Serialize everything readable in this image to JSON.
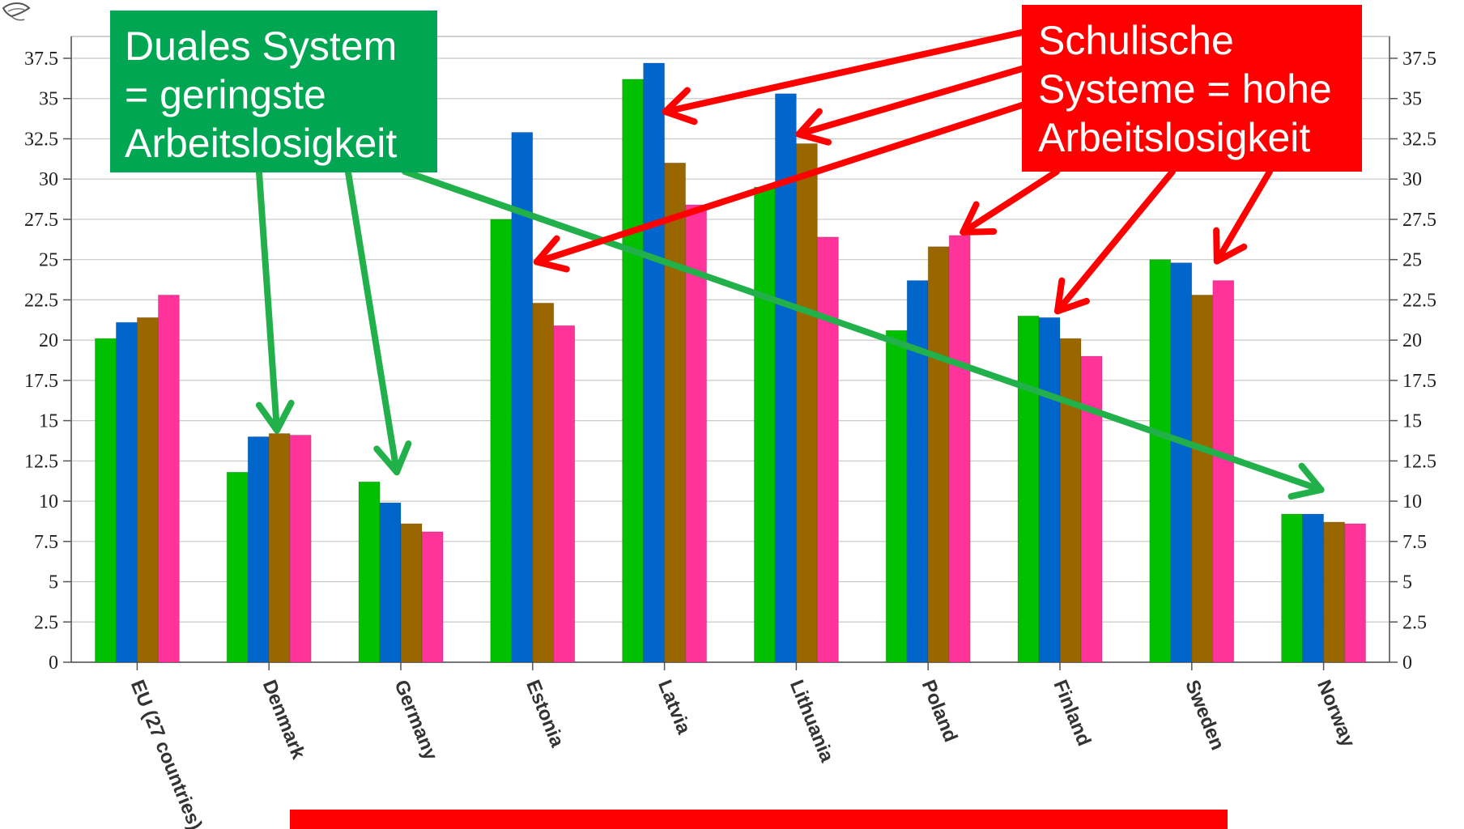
{
  "chart_data": {
    "type": "bar",
    "categories": [
      "EU (27 countries)",
      "Denmark",
      "Germany",
      "Estonia",
      "Latvia",
      "Lithuania",
      "Poland",
      "Finland",
      "Sweden",
      "Norway"
    ],
    "series": [
      {
        "color": "#00c000",
        "values": [
          20.1,
          11.8,
          11.2,
          27.5,
          36.2,
          29.5,
          20.6,
          21.5,
          25.0,
          9.2
        ]
      },
      {
        "color": "#0066cc",
        "values": [
          21.1,
          14.0,
          9.9,
          32.9,
          37.2,
          35.3,
          23.7,
          21.4,
          24.8,
          9.2
        ]
      },
      {
        "color": "#996600",
        "values": [
          21.4,
          14.2,
          8.6,
          22.3,
          31.0,
          32.2,
          25.8,
          20.1,
          22.8,
          8.7
        ]
      },
      {
        "color": "#ff3399",
        "values": [
          22.8,
          14.1,
          8.1,
          20.9,
          28.4,
          26.4,
          26.5,
          19.0,
          23.7,
          8.6
        ]
      }
    ],
    "ylim": [
      0,
      37.5
    ],
    "yticks": [
      "0",
      "2.5",
      "5",
      "7.5",
      "10",
      "12.5",
      "15",
      "17.5",
      "20",
      "22.5",
      "25",
      "27.5",
      "30",
      "32.5",
      "35",
      "37.5"
    ],
    "grid": true,
    "xlabel": "",
    "ylabel": ""
  },
  "annotations": {
    "dual": {
      "lines": [
        "Duales System",
        "= geringste",
        "Arbeitslosigkeit"
      ],
      "color": "#00a651",
      "arrow_color": "#22b04a",
      "targets": [
        "Denmark",
        "Germany",
        "Norway"
      ]
    },
    "school": {
      "lines": [
        "Schulische",
        "Systeme = hohe",
        "Arbeitslosigkeit"
      ],
      "color": "#ff0000",
      "targets": [
        "Latvia",
        "Lithuania",
        "Estonia",
        "Poland",
        "Finland",
        "Sweden"
      ]
    }
  },
  "footer_bar_color": "#ff0000"
}
